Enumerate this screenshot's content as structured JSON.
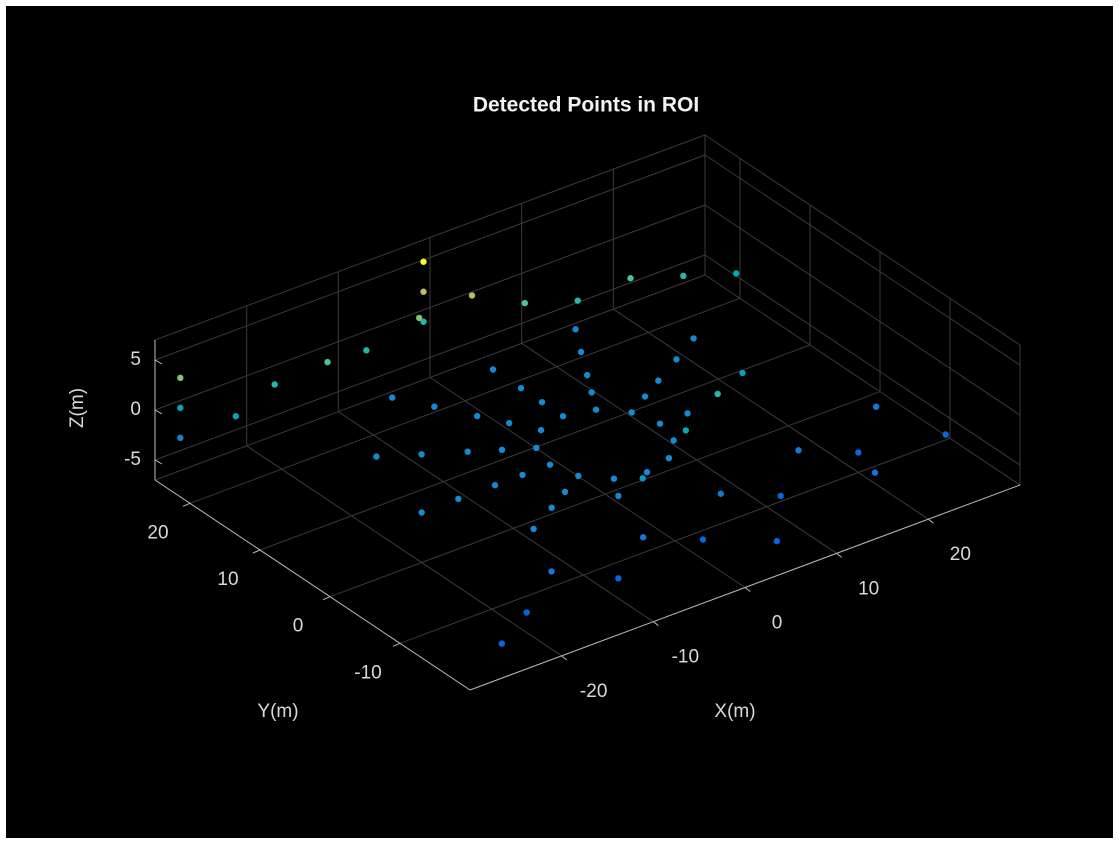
{
  "chart_data": {
    "type": "scatter3d",
    "title": "Detected Points in ROI",
    "xlabel": "X(m)",
    "ylabel": "Y(m)",
    "zlabel": "Z(m)",
    "xlim": [
      -30,
      30
    ],
    "ylim": [
      -20,
      25
    ],
    "zlim": [
      -7,
      7
    ],
    "xticks": [
      -20,
      -10,
      0,
      10,
      20
    ],
    "yticks": [
      -10,
      0,
      10,
      20
    ],
    "zticks": [
      -5,
      0,
      5
    ],
    "grid": true,
    "colormap": "parula",
    "x": [
      6,
      5.2,
      3,
      0,
      -3,
      -5.2,
      -6,
      -5.2,
      -3,
      0,
      3,
      5.2,
      9,
      7.8,
      4.5,
      0,
      -4.5,
      -7.8,
      -9,
      -7.8,
      -4.5,
      10.4,
      6,
      0,
      -6,
      -10.4,
      -12,
      -10.4,
      13.9,
      8,
      0,
      -8,
      -13.9,
      -16,
      -13.9,
      17.3,
      10,
      -10,
      -17.3,
      -20,
      -25,
      -20,
      -15,
      -10,
      -5,
      0,
      5,
      10,
      15,
      20,
      25,
      -3,
      -3,
      -3,
      -28,
      -28,
      -28,
      5,
      10,
      15,
      -2,
      -20,
      -15,
      -10,
      -5,
      0,
      5,
      10,
      15,
      20,
      25,
      28,
      -25,
      5,
      18
    ],
    "y": [
      0,
      3,
      5.2,
      6,
      5.2,
      3,
      0,
      -3,
      -5.2,
      -6,
      -5.2,
      -3,
      0,
      4.5,
      7.8,
      9,
      7.8,
      4.5,
      0,
      -4.5,
      -7.8,
      6,
      10.4,
      12,
      10.4,
      6,
      0,
      -6,
      8,
      13.9,
      16,
      13.9,
      8,
      0,
      -8,
      10,
      17.3,
      17.3,
      10,
      0,
      20,
      21,
      20,
      21,
      20,
      19,
      18,
      17,
      16,
      15,
      14,
      22,
      22,
      22,
      24,
      24,
      24,
      -5,
      -3,
      0,
      -8,
      -15,
      -12,
      -15,
      -12,
      -14,
      -10,
      -12,
      -8,
      -10,
      -6,
      -12,
      -18,
      -18,
      -15
    ],
    "z": [
      -2,
      -2,
      -2,
      -2,
      -2,
      -2,
      -2,
      -2,
      -2,
      -2,
      -2,
      -2,
      -2,
      -2,
      -2,
      -2,
      -2,
      -2,
      -2,
      -2,
      -2,
      -2,
      -2,
      -2,
      -2,
      -2,
      -2,
      -2,
      -2,
      -2,
      -2,
      -2,
      -2,
      -2,
      -2,
      -2,
      -2,
      -2,
      -2,
      -2,
      0,
      1,
      2,
      1,
      3,
      4,
      2,
      1,
      2,
      1,
      0,
      1,
      4,
      7,
      -3,
      0,
      3,
      0,
      1,
      0,
      -1,
      -5,
      -4,
      -5,
      -4,
      -5,
      -4,
      -5,
      -4,
      -5,
      -4,
      -5,
      -5,
      -5,
      -4
    ]
  }
}
